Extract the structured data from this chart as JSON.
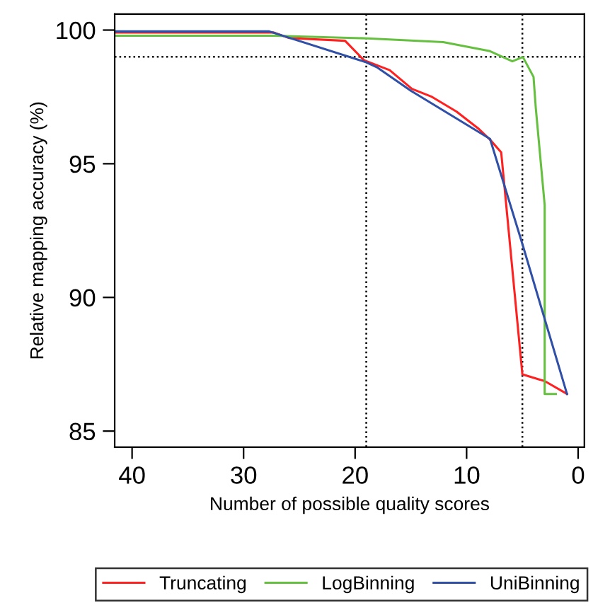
{
  "chart_data": {
    "type": "line",
    "xlabel": "Number of possible quality scores",
    "ylabel": "Relative mapping accuracy (%)",
    "xlim": [
      41.56,
      -0.56
    ],
    "xticks": [
      40,
      30,
      20,
      10,
      0
    ],
    "ylim": [
      84.4,
      100.6
    ],
    "yticks": [
      85,
      90,
      95,
      100
    ],
    "grid": false,
    "legend": "bottom",
    "marker": "none",
    "line_style": "solid",
    "ref_lines": [
      {
        "axis": "y",
        "value": 99,
        "line_style": "dotted",
        "color": "#000000"
      },
      {
        "axis": "x",
        "value": 19,
        "line_style": "dotted",
        "color": "#000000"
      },
      {
        "axis": "x",
        "value": 5,
        "line_style": "dotted",
        "color": "#000000"
      }
    ],
    "series": [
      {
        "name": "Truncating",
        "color": "#ff2020",
        "x": [
          41.5,
          27.3,
          25.9,
          20.9,
          19.2,
          16.9,
          14.9,
          13.1,
          10.9,
          8.9,
          7.9,
          6.9,
          5,
          3,
          1
        ],
        "values": [
          99.91,
          99.91,
          99.7,
          99.6,
          98.87,
          98.5,
          97.8,
          97.5,
          96.95,
          96.3,
          95.9,
          95.43,
          87.12,
          86.87,
          86.39
        ]
      },
      {
        "name": "LogBinning",
        "color": "#66c040",
        "x": [
          41.5,
          27.3,
          18.9,
          12.1,
          7.9,
          5.9,
          4.95,
          4.0,
          3.8,
          3.0,
          3.0,
          2.0
        ],
        "values": [
          99.79,
          99.79,
          99.69,
          99.55,
          99.21,
          98.83,
          98.99,
          98.25,
          97.1,
          93.45,
          86.39,
          86.39
        ]
      },
      {
        "name": "UniBinning",
        "color": "#3050a8",
        "x": [
          41.5,
          27.7,
          19.1,
          18.0,
          15.0,
          7.9,
          5.0,
          1.0
        ],
        "values": [
          99.95,
          99.95,
          98.81,
          98.6,
          97.73,
          95.93,
          92.0,
          86.39
        ]
      }
    ]
  }
}
